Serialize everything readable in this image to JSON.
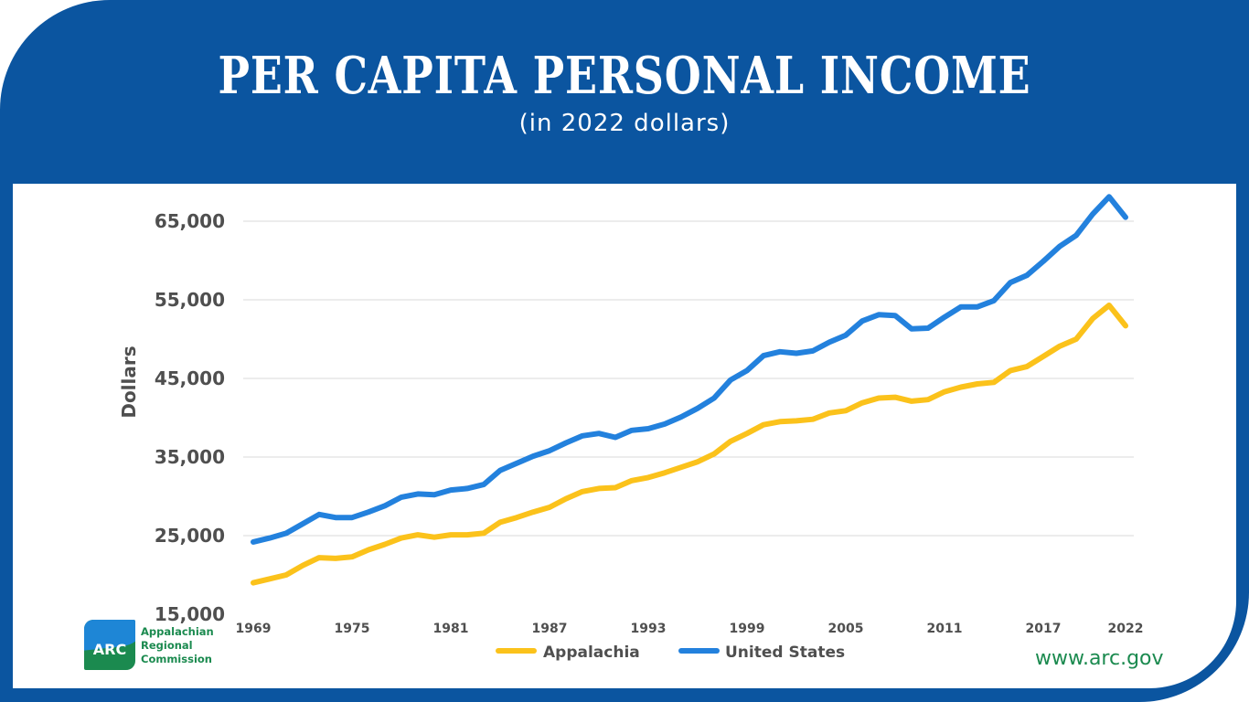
{
  "header": {
    "title": "PER CAPITA PERSONAL INCOME",
    "subtitle": "(in 2022 dollars)"
  },
  "footer": {
    "logo_text": "ARC",
    "org_lines": [
      "Appalachian",
      "Regional",
      "Commission"
    ],
    "website": "www.arc.gov"
  },
  "colors": {
    "frame": "#0b55a0",
    "appalachia": "#fbc21b",
    "united_states": "#2381dd",
    "brand_green": "#1b8a4f"
  },
  "chart_data": {
    "type": "line",
    "title": "PER CAPITA PERSONAL INCOME",
    "subtitle": "(in 2022 dollars)",
    "xlabel": "",
    "ylabel": "Dollars",
    "ylim": [
      15000,
      65000
    ],
    "yticks": [
      "15,000",
      "25,000",
      "35,000",
      "45,000",
      "55,000",
      "65,000"
    ],
    "ytick_values": [
      15000,
      25000,
      35000,
      45000,
      55000,
      65000
    ],
    "xticks": [
      "1969",
      "1975",
      "1981",
      "1987",
      "1993",
      "1999",
      "2005",
      "2011",
      "2017",
      "2022"
    ],
    "xtick_values": [
      1969,
      1975,
      1981,
      1987,
      1993,
      1999,
      2005,
      2011,
      2017,
      2022
    ],
    "grid": true,
    "legend_position": "bottom",
    "x": [
      1969,
      1970,
      1971,
      1972,
      1973,
      1974,
      1975,
      1976,
      1977,
      1978,
      1979,
      1980,
      1981,
      1982,
      1983,
      1984,
      1985,
      1986,
      1987,
      1988,
      1989,
      1990,
      1991,
      1992,
      1993,
      1994,
      1995,
      1996,
      1997,
      1998,
      1999,
      2000,
      2001,
      2002,
      2003,
      2004,
      2005,
      2006,
      2007,
      2008,
      2009,
      2010,
      2011,
      2012,
      2013,
      2014,
      2015,
      2016,
      2017,
      2018,
      2019,
      2020,
      2021,
      2022
    ],
    "series": [
      {
        "name": "Appalachia",
        "color": "#fbc21b",
        "values": [
          19000,
          19500,
          20000,
          21200,
          22200,
          22100,
          22300,
          23200,
          23900,
          24700,
          25100,
          24800,
          25100,
          25100,
          25300,
          26700,
          27300,
          28000,
          28600,
          29700,
          30600,
          31000,
          31100,
          32000,
          32400,
          33000,
          33700,
          34400,
          35400,
          37000,
          38000,
          39100,
          39500,
          39600,
          39800,
          40600,
          40900,
          41900,
          42500,
          42600,
          42100,
          42300,
          43300,
          43900,
          44300,
          44500,
          46000,
          46500,
          47800,
          49100,
          50000,
          52600,
          54300,
          51700
        ]
      },
      {
        "name": "United States",
        "color": "#2381dd",
        "values": [
          24200,
          24700,
          25300,
          26500,
          27700,
          27300,
          27300,
          28000,
          28800,
          29900,
          30300,
          30200,
          30800,
          31000,
          31500,
          33300,
          34200,
          35100,
          35800,
          36800,
          37700,
          38000,
          37500,
          38400,
          38600,
          39200,
          40100,
          41200,
          42500,
          44800,
          46000,
          47900,
          48400,
          48200,
          48500,
          49600,
          50500,
          52300,
          53100,
          53000,
          51300,
          51400,
          52800,
          54100,
          54100,
          54900,
          57200,
          58100,
          59900,
          61800,
          63200,
          65900,
          68100,
          65500
        ]
      }
    ]
  }
}
